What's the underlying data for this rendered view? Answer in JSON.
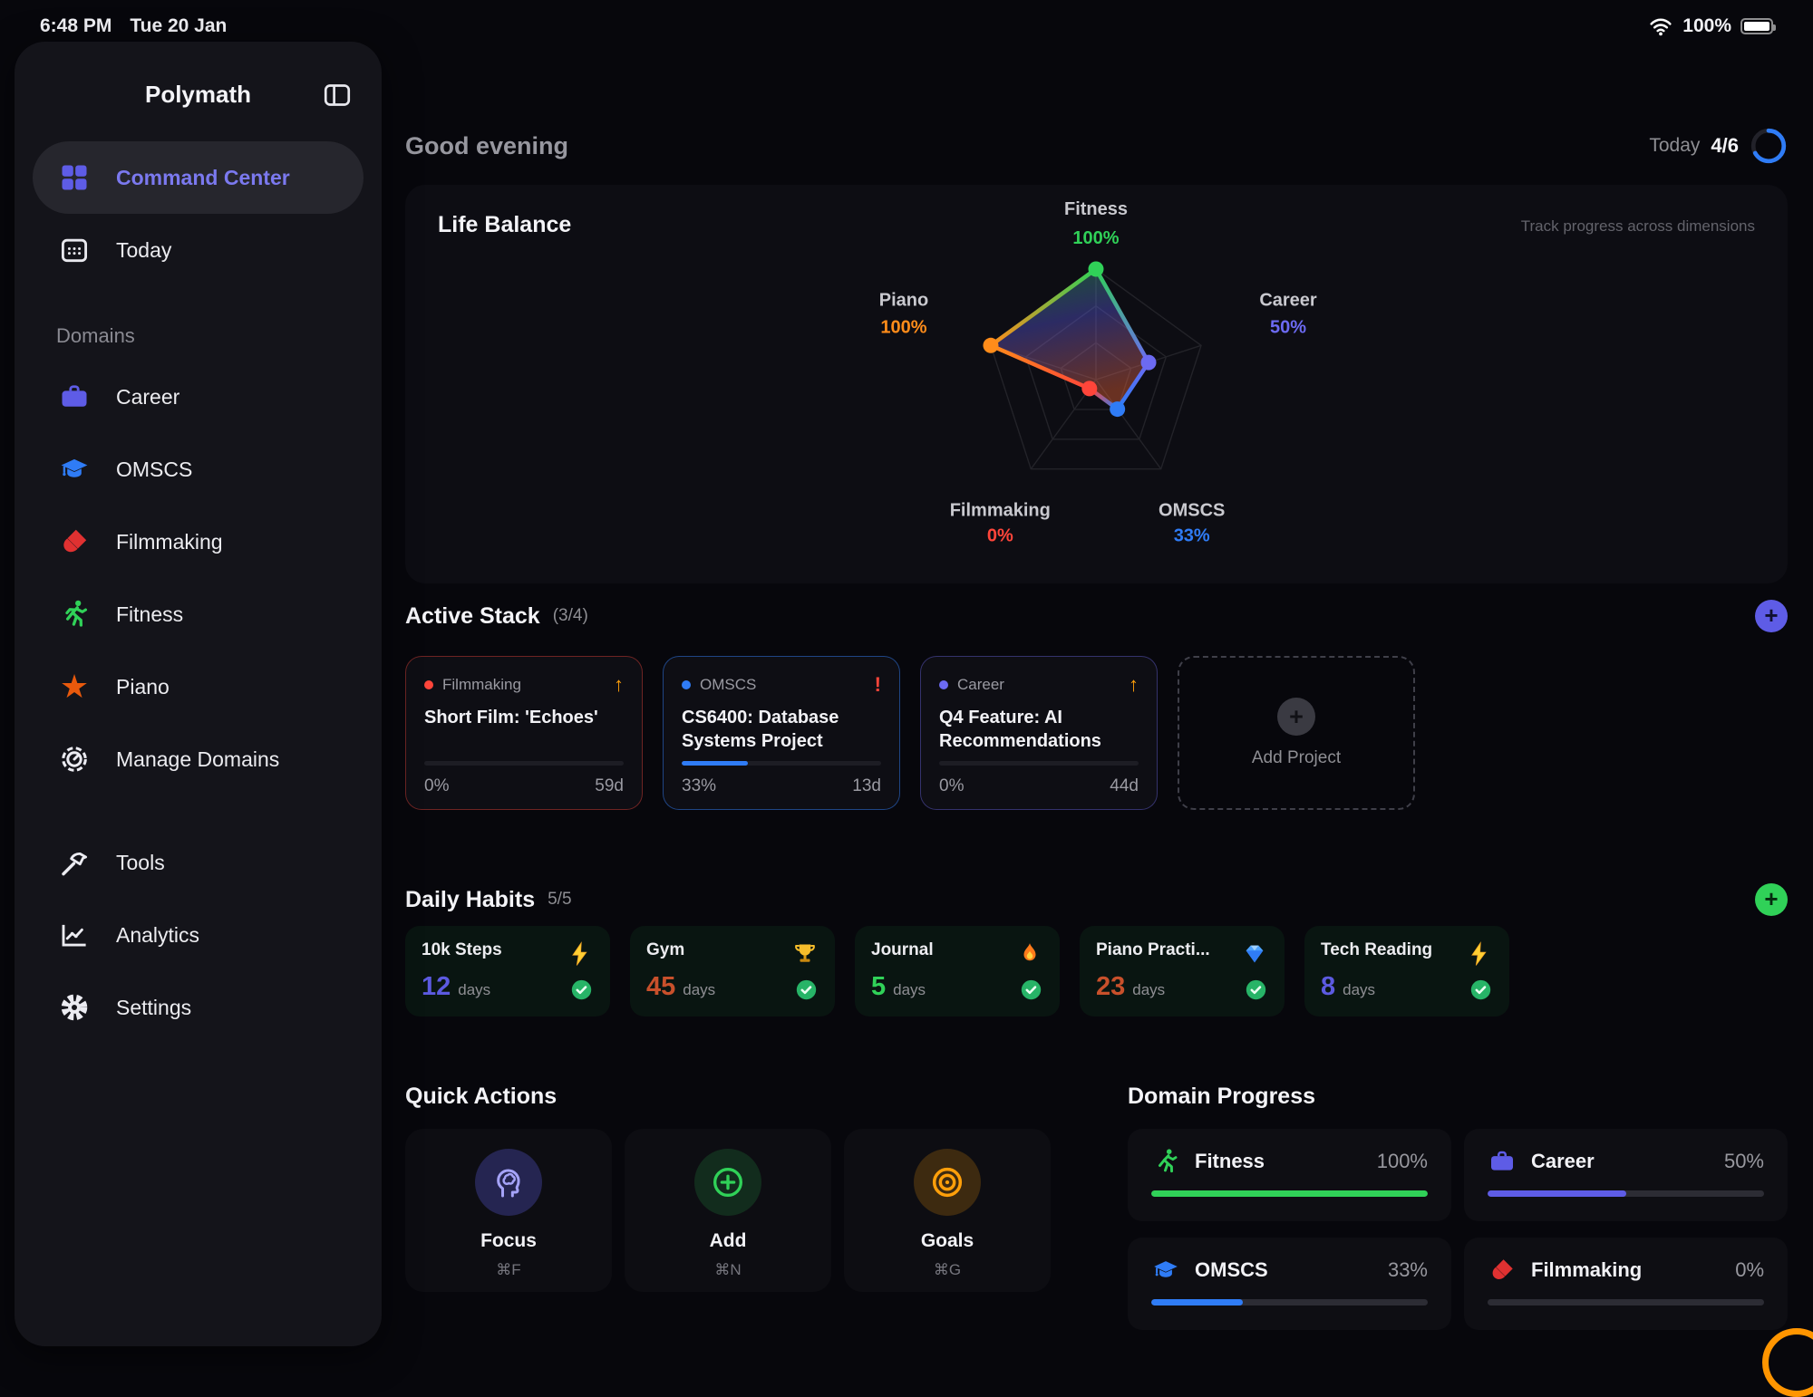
{
  "status_bar": {
    "time": "6:48 PM",
    "date": "Tue 20 Jan",
    "battery_percent": "100%"
  },
  "sidebar": {
    "app_title": "Polymath",
    "main_items": [
      {
        "label": "Command Center"
      },
      {
        "label": "Today"
      }
    ],
    "section_label": "Domains",
    "domain_items": [
      {
        "label": "Career",
        "color": "#5e5ce6"
      },
      {
        "label": "OMSCS",
        "color": "#2f7cf6"
      },
      {
        "label": "Filmmaking",
        "color": "#e03131"
      },
      {
        "label": "Fitness",
        "color": "#30d158"
      },
      {
        "label": "Piano",
        "color": "#e8590c"
      },
      {
        "label": "Manage Domains",
        "color": "#ececf2"
      }
    ],
    "utility_items": [
      {
        "label": "Tools"
      },
      {
        "label": "Analytics"
      },
      {
        "label": "Settings"
      }
    ]
  },
  "header": {
    "greeting": "Good evening",
    "today_label": "Today",
    "today_count": "4/6",
    "ring_percent": 67,
    "ring_color": "#2f7cf6"
  },
  "life_balance": {
    "title": "Life Balance",
    "subtitle": "Track progress across dimensions",
    "chart_data": {
      "type": "radar",
      "axes": [
        "Fitness",
        "Career",
        "OMSCS",
        "Filmmaking",
        "Piano"
      ],
      "values": [
        100,
        50,
        33,
        0,
        100
      ],
      "value_labels": [
        "100%",
        "50%",
        "33%",
        "0%",
        "100%"
      ],
      "colors": [
        "#30d158",
        "#6c6af2",
        "#2f7cf6",
        "#ff453a",
        "#ff8c1a"
      ],
      "rings": 3,
      "max": 100
    }
  },
  "active_stack": {
    "title": "Active Stack",
    "count": "(3/4)",
    "projects": [
      {
        "domain": "Filmmaking",
        "dot_color": "#ff453a",
        "badge": "↑",
        "title": "Short Film: 'Echoes'",
        "progress": 0,
        "percent": "0%",
        "days": "59d",
        "accent": "#ff453a"
      },
      {
        "domain": "OMSCS",
        "dot_color": "#2f7cf6",
        "badge": "!",
        "title": "CS6400: Database Systems Project",
        "progress": 33,
        "percent": "33%",
        "days": "13d",
        "accent": "#2f7cf6"
      },
      {
        "domain": "Career",
        "dot_color": "#6c6af2",
        "badge": "↑",
        "title": "Q4 Feature: AI Recommendations",
        "progress": 0,
        "percent": "0%",
        "days": "44d",
        "accent": "#6c6af2"
      }
    ],
    "add_card_label": "Add Project",
    "add_icon": "+"
  },
  "daily_habits": {
    "title": "Daily Habits",
    "count": "5/5",
    "habits": [
      {
        "name": "10k Steps",
        "streak": "12",
        "unit": "days",
        "icon": "lightning",
        "number_color": "#5c5ae0"
      },
      {
        "name": "Gym",
        "streak": "45",
        "unit": "days",
        "icon": "trophy",
        "number_color": "#c8502b"
      },
      {
        "name": "Journal",
        "streak": "5",
        "unit": "days",
        "icon": "flame",
        "number_color": "#30d158"
      },
      {
        "name": "Piano Practi...",
        "streak": "23",
        "unit": "days",
        "icon": "diamond",
        "number_color": "#c8502b"
      },
      {
        "name": "Tech Reading",
        "streak": "8",
        "unit": "days",
        "icon": "lightning",
        "number_color": "#5c5ae0"
      }
    ]
  },
  "quick_actions": {
    "title": "Quick Actions",
    "actions": [
      {
        "label": "Focus",
        "shortcut": "⌘F",
        "color": "#5e5ce6"
      },
      {
        "label": "Add",
        "shortcut": "⌘N",
        "color": "#30d158"
      },
      {
        "label": "Goals",
        "shortcut": "⌘G",
        "color": "#ff9f0a"
      }
    ]
  },
  "domain_progress": {
    "title": "Domain Progress",
    "items": [
      {
        "name": "Fitness",
        "percent": "100%",
        "progress": 100,
        "color": "#30d158"
      },
      {
        "name": "Career",
        "percent": "50%",
        "progress": 50,
        "color": "#5e5ce6"
      },
      {
        "name": "OMSCS",
        "percent": "33%",
        "progress": 33,
        "color": "#2f7cf6"
      },
      {
        "name": "Filmmaking",
        "percent": "0%",
        "progress": 0,
        "color": "#e03131"
      }
    ]
  }
}
